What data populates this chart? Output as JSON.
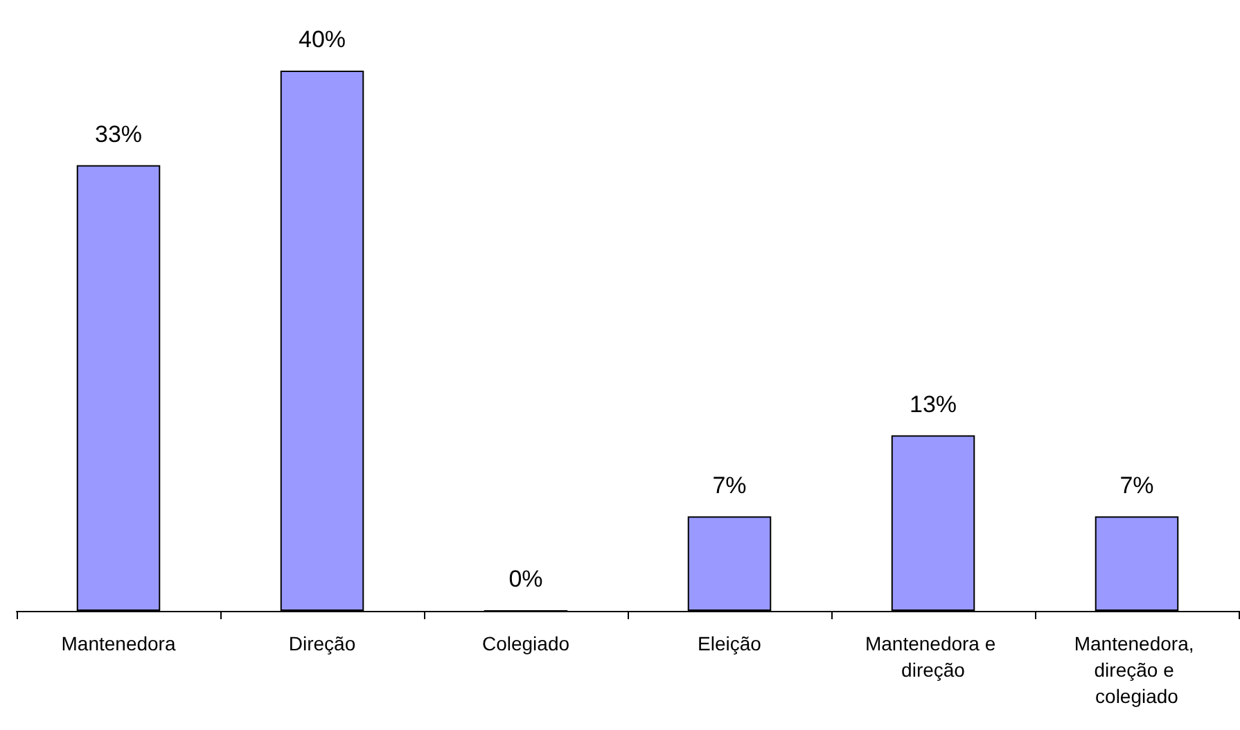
{
  "chart_data": {
    "type": "bar",
    "categories": [
      "Mantenedora",
      "Direção",
      "Colegiado",
      "Eleição",
      "Mantenedora e direção",
      "Mantenedora, direção e colegiado"
    ],
    "values": [
      33,
      40,
      0,
      7,
      13,
      7
    ],
    "value_labels": [
      "33%",
      "40%",
      "0%",
      "7%",
      "13%",
      "7%"
    ],
    "color": "#9999ff"
  }
}
